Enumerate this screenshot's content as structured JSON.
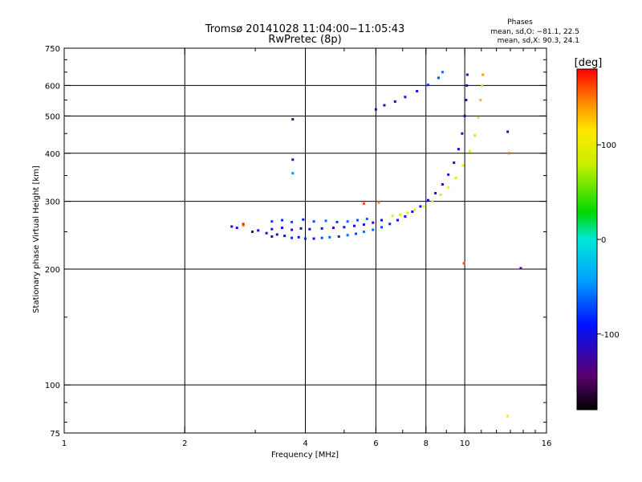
{
  "chart_data": {
    "type": "scatter",
    "title": "Tromsø 20141028 11:04:00−11:05:43",
    "subtitle": "RwPretec (8p)",
    "xlabel": "Frequency [MHz]",
    "ylabel": "Stationary phase Virtual Height [km]",
    "x_scale": "log",
    "y_scale": "log",
    "xlim": [
      1,
      16
    ],
    "ylim": [
      75,
      750
    ],
    "x_ticks": [
      1,
      2,
      4,
      6,
      8,
      10,
      16
    ],
    "x_tick_labels": [
      "1",
      "2",
      "4",
      "6",
      "8",
      "10",
      "16"
    ],
    "x_gridlines": [
      2,
      4,
      6,
      8,
      10
    ],
    "y_ticks": [
      75,
      100,
      200,
      300,
      400,
      500,
      600,
      750
    ],
    "y_tick_labels": [
      "75",
      "100",
      "200",
      "300",
      "400",
      "500",
      "600",
      "750"
    ],
    "y_gridlines": [
      100,
      200,
      300,
      400,
      500,
      600
    ],
    "grid": true,
    "phases": {
      "header": "Phases",
      "o_line": "mean, sd,O: −81.1, 22.5",
      "x_line": "mean, sd,X:  90.3, 24.1"
    },
    "colorbar": {
      "unit": "[deg]",
      "range": [
        -180,
        180
      ],
      "ticks": [
        100,
        0,
        -100
      ],
      "tick_labels": [
        "100",
        "0",
        "-100"
      ]
    },
    "series": [
      {
        "points": [
          {
            "x": 2.62,
            "y": 258,
            "phase": -110
          },
          {
            "x": 2.7,
            "y": 256,
            "phase": -100
          },
          {
            "x": 2.8,
            "y": 260,
            "phase": 150
          },
          {
            "x": 2.95,
            "y": 250,
            "phase": -110
          },
          {
            "x": 3.05,
            "y": 252,
            "phase": -100
          },
          {
            "x": 3.2,
            "y": 248,
            "phase": -110
          },
          {
            "x": 3.3,
            "y": 243,
            "phase": -95
          },
          {
            "x": 3.4,
            "y": 246,
            "phase": -120
          },
          {
            "x": 3.55,
            "y": 244,
            "phase": -100
          },
          {
            "x": 3.7,
            "y": 241,
            "phase": -80
          },
          {
            "x": 3.85,
            "y": 242,
            "phase": -95
          },
          {
            "x": 4.0,
            "y": 240,
            "phase": -80
          },
          {
            "x": 4.2,
            "y": 240,
            "phase": -90
          },
          {
            "x": 4.4,
            "y": 241,
            "phase": -70
          },
          {
            "x": 4.6,
            "y": 242,
            "phase": -60
          },
          {
            "x": 4.85,
            "y": 243,
            "phase": -80
          },
          {
            "x": 5.1,
            "y": 245,
            "phase": -60
          },
          {
            "x": 5.35,
            "y": 247,
            "phase": -70
          },
          {
            "x": 5.6,
            "y": 250,
            "phase": -55
          },
          {
            "x": 5.9,
            "y": 253,
            "phase": -60
          },
          {
            "x": 6.2,
            "y": 257,
            "phase": -70
          },
          {
            "x": 6.5,
            "y": 262,
            "phase": -80
          },
          {
            "x": 6.8,
            "y": 268,
            "phase": -90
          },
          {
            "x": 7.1,
            "y": 274,
            "phase": -100
          },
          {
            "x": 7.4,
            "y": 282,
            "phase": -110
          },
          {
            "x": 7.75,
            "y": 291,
            "phase": -100
          },
          {
            "x": 8.1,
            "y": 302,
            "phase": -100
          },
          {
            "x": 8.45,
            "y": 315,
            "phase": -110
          },
          {
            "x": 8.8,
            "y": 332,
            "phase": -120
          },
          {
            "x": 9.1,
            "y": 352,
            "phase": -100
          },
          {
            "x": 9.4,
            "y": 378,
            "phase": -110
          },
          {
            "x": 9.65,
            "y": 410,
            "phase": -100
          },
          {
            "x": 9.85,
            "y": 450,
            "phase": -110
          },
          {
            "x": 10.0,
            "y": 500,
            "phase": -105
          },
          {
            "x": 10.08,
            "y": 550,
            "phase": -100
          },
          {
            "x": 10.12,
            "y": 600,
            "phase": -110
          },
          {
            "x": 10.15,
            "y": 640,
            "phase": -95
          },
          {
            "x": 3.3,
            "y": 254,
            "phase": -110
          },
          {
            "x": 3.5,
            "y": 256,
            "phase": -100
          },
          {
            "x": 3.7,
            "y": 253,
            "phase": -120
          },
          {
            "x": 3.9,
            "y": 255,
            "phase": -100
          },
          {
            "x": 4.1,
            "y": 254,
            "phase": -110
          },
          {
            "x": 4.4,
            "y": 255,
            "phase": -100
          },
          {
            "x": 4.7,
            "y": 256,
            "phase": -115
          },
          {
            "x": 5.0,
            "y": 257,
            "phase": -100
          },
          {
            "x": 5.3,
            "y": 259,
            "phase": -110
          },
          {
            "x": 5.6,
            "y": 261,
            "phase": -100
          },
          {
            "x": 5.9,
            "y": 264,
            "phase": -110
          },
          {
            "x": 6.2,
            "y": 268,
            "phase": -100
          },
          {
            "x": 3.3,
            "y": 266,
            "phase": -75
          },
          {
            "x": 3.5,
            "y": 268,
            "phase": -80
          },
          {
            "x": 3.7,
            "y": 265,
            "phase": -70
          },
          {
            "x": 3.95,
            "y": 269,
            "phase": -85
          },
          {
            "x": 4.2,
            "y": 266,
            "phase": -70
          },
          {
            "x": 4.5,
            "y": 267,
            "phase": -60
          },
          {
            "x": 4.8,
            "y": 265,
            "phase": -75
          },
          {
            "x": 5.1,
            "y": 266,
            "phase": -60
          },
          {
            "x": 5.4,
            "y": 268,
            "phase": -70
          },
          {
            "x": 5.7,
            "y": 270,
            "phase": -65
          },
          {
            "x": 6.6,
            "y": 275,
            "phase": 100
          },
          {
            "x": 6.9,
            "y": 277,
            "phase": 90
          },
          {
            "x": 7.2,
            "y": 280,
            "phase": 95
          },
          {
            "x": 7.5,
            "y": 285,
            "phase": 100
          },
          {
            "x": 7.9,
            "y": 291,
            "phase": 110
          },
          {
            "x": 8.3,
            "y": 300,
            "phase": 105
          },
          {
            "x": 8.7,
            "y": 312,
            "phase": 95
          },
          {
            "x": 9.1,
            "y": 326,
            "phase": 110
          },
          {
            "x": 9.5,
            "y": 345,
            "phase": 100
          },
          {
            "x": 9.9,
            "y": 372,
            "phase": 115
          },
          {
            "x": 10.3,
            "y": 405,
            "phase": 100
          },
          {
            "x": 10.6,
            "y": 445,
            "phase": 120
          },
          {
            "x": 10.8,
            "y": 495,
            "phase": 110
          },
          {
            "x": 10.95,
            "y": 550,
            "phase": 130
          },
          {
            "x": 11.05,
            "y": 600,
            "phase": 120
          },
          {
            "x": 11.1,
            "y": 640,
            "phase": 140
          },
          {
            "x": 6.0,
            "y": 520,
            "phase": -110
          },
          {
            "x": 6.3,
            "y": 533,
            "phase": -100
          },
          {
            "x": 6.7,
            "y": 545,
            "phase": -90
          },
          {
            "x": 7.1,
            "y": 560,
            "phase": -110
          },
          {
            "x": 7.6,
            "y": 580,
            "phase": -100
          },
          {
            "x": 8.1,
            "y": 602,
            "phase": -80
          },
          {
            "x": 8.6,
            "y": 628,
            "phase": -70
          },
          {
            "x": 8.8,
            "y": 650,
            "phase": -60
          },
          {
            "x": 3.72,
            "y": 490,
            "phase": -140
          },
          {
            "x": 3.72,
            "y": 385,
            "phase": -115
          },
          {
            "x": 3.72,
            "y": 355,
            "phase": -45
          },
          {
            "x": 9.95,
            "y": 207,
            "phase": 160
          },
          {
            "x": 12.8,
            "y": 455,
            "phase": -120
          },
          {
            "x": 12.9,
            "y": 400,
            "phase": 150
          },
          {
            "x": 13.8,
            "y": 201,
            "phase": -140
          },
          {
            "x": 12.8,
            "y": 83,
            "phase": 110
          },
          {
            "x": 5.6,
            "y": 296,
            "phase": 160
          },
          {
            "x": 6.1,
            "y": 298,
            "phase": 150
          },
          {
            "x": 2.8,
            "y": 262,
            "phase": 170
          }
        ]
      }
    ]
  }
}
